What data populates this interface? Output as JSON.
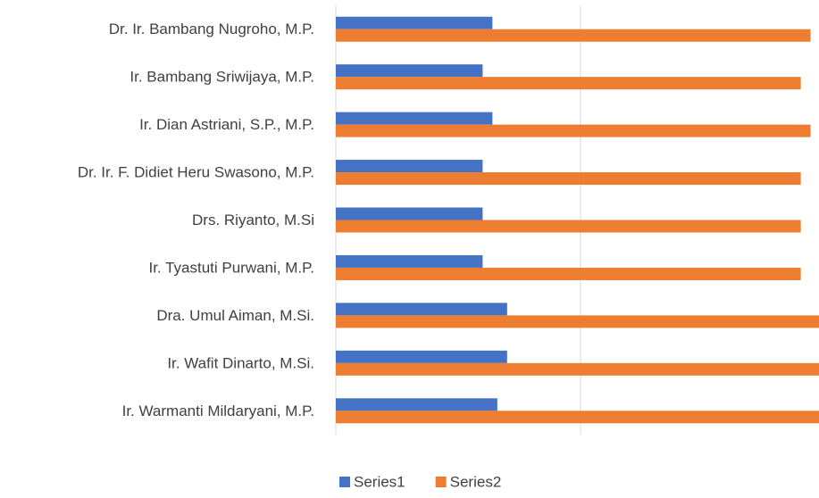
{
  "chart_data": {
    "type": "bar",
    "orientation": "horizontal",
    "categories": [
      "Dr. Ir. Bambang Nugroho, M.P.",
      "Ir. Bambang Sriwijaya, M.P.",
      "Ir. Dian Astriani, S.P., M.P.",
      "Dr. Ir. F. Didiet Heru Swasono, M.P.",
      "Drs. Riyanto, M.Si",
      "Ir. Tyastuti Purwani, M.P.",
      "Dra. Umul Aiman, M.Si.",
      "Ir. Wafit Dinarto, M.Si.",
      "Ir. Warmanti Mildaryani, M.P."
    ],
    "series": [
      {
        "name": "Series1",
        "color": "#4472c4",
        "values": [
          3.2,
          3.0,
          3.2,
          3.0,
          3.0,
          3.0,
          3.5,
          3.5,
          3.3
        ]
      },
      {
        "name": "Series2",
        "color": "#ed7d31",
        "values": [
          9.7,
          9.5,
          9.7,
          9.5,
          9.5,
          9.5,
          9.9,
          9.9,
          9.9
        ]
      }
    ],
    "xlim": [
      0,
      10
    ],
    "xticks": [
      0,
      5
    ],
    "grid": true,
    "legend": "bottom"
  }
}
